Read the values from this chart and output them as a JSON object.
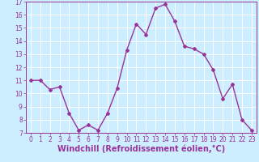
{
  "x": [
    0,
    1,
    2,
    3,
    4,
    5,
    6,
    7,
    8,
    9,
    10,
    11,
    12,
    13,
    14,
    15,
    16,
    17,
    18,
    19,
    20,
    21,
    22,
    23
  ],
  "y": [
    11,
    11,
    10.3,
    10.5,
    8.5,
    7.2,
    7.6,
    7.2,
    8.5,
    10.4,
    13.3,
    15.3,
    14.5,
    16.5,
    16.8,
    15.5,
    13.6,
    13.4,
    13.0,
    11.8,
    9.6,
    10.7,
    8.0,
    7.2
  ],
  "line_color": "#993399",
  "marker": "D",
  "marker_size": 2,
  "xlabel": "Windchill (Refroidissement éolien,°C)",
  "xlabel_fontsize": 7,
  "ylim": [
    7,
    17
  ],
  "yticks": [
    7,
    8,
    9,
    10,
    11,
    12,
    13,
    14,
    15,
    16,
    17
  ],
  "xticks": [
    0,
    1,
    2,
    3,
    4,
    5,
    6,
    7,
    8,
    9,
    10,
    11,
    12,
    13,
    14,
    15,
    16,
    17,
    18,
    19,
    20,
    21,
    22,
    23
  ],
  "background_color": "#cceeff",
  "grid_color": "#ffffff",
  "tick_fontsize": 5.5,
  "line_width": 1.0
}
